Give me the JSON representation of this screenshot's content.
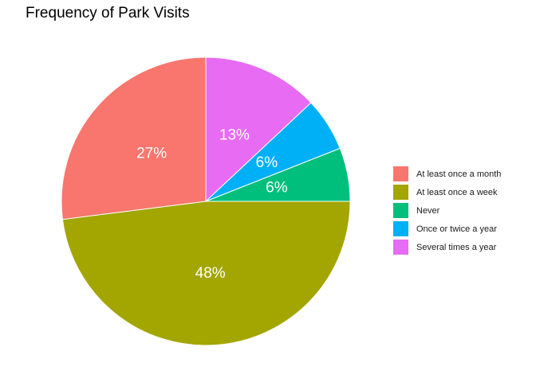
{
  "chart_data": {
    "type": "pie",
    "title": "Frequency of Park Visits",
    "slices": [
      {
        "label": "At least once a month",
        "value": 27,
        "display": "27%",
        "color": "#F8766D"
      },
      {
        "label": "At least once a week",
        "value": 48,
        "display": "48%",
        "color": "#A3A500"
      },
      {
        "label": "Never",
        "value": 6,
        "display": "6%",
        "color": "#00BF7D"
      },
      {
        "label": "Once or twice a year",
        "value": 6,
        "display": "6%",
        "color": "#00B0F6"
      },
      {
        "label": "Several times a year",
        "value": 13,
        "display": "13%",
        "color": "#E76BF3"
      }
    ],
    "legend_position": "right"
  }
}
